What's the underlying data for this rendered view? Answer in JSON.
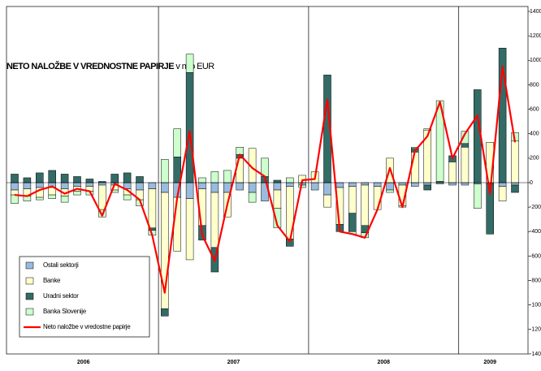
{
  "chart_data": {
    "type": "stacked_bar_line",
    "title": "NETO NALOŽBE V VREDNOSTNE PAPIRJE",
    "title_unit": "v mio EUR",
    "categories": [
      null,
      null,
      null,
      null,
      null,
      null,
      null,
      null,
      null,
      null,
      null,
      null,
      null,
      null,
      null,
      null,
      null,
      null,
      null,
      null,
      null,
      null,
      null,
      null,
      null,
      null,
      null,
      null,
      null,
      null,
      null,
      null,
      null,
      null,
      null,
      null,
      null,
      null,
      null,
      null,
      null
    ],
    "year_labels": [
      "2006",
      "2007",
      "2008",
      "2009"
    ],
    "series": [
      {
        "name": "Ostali sektorji",
        "color": "#99bbdd",
        "values": [
          -60,
          -50,
          -40,
          -40,
          -50,
          -30,
          -30,
          -20,
          -20,
          -50,
          -60,
          -50,
          -80,
          -120,
          -130,
          -50,
          -80,
          -80,
          -60,
          -80,
          -150,
          -60,
          -30,
          -20,
          -60,
          -100,
          -40,
          -30,
          -20,
          -30,
          -60,
          -20,
          -30,
          -20,
          -10,
          -20,
          -20,
          -10,
          -10,
          -30,
          -20
        ]
      },
      {
        "name": "Banke",
        "color": "#ffffcc",
        "values": [
          -40,
          -60,
          -80,
          -60,
          -60,
          -40,
          -40,
          -200,
          -40,
          -50,
          -80,
          -320,
          -950,
          -440,
          -500,
          -300,
          -450,
          -200,
          200,
          280,
          0,
          -150,
          -430,
          60,
          90,
          -100,
          -300,
          -220,
          -330,
          -190,
          200,
          -170,
          250,
          430,
          0,
          170,
          290,
          0,
          330,
          -120,
          340
        ]
      },
      {
        "name": "Uradni sektor",
        "color": "#336b66",
        "values": [
          70,
          40,
          80,
          100,
          70,
          50,
          30,
          10,
          70,
          80,
          50,
          -20,
          -60,
          210,
          900,
          -120,
          -200,
          0,
          30,
          0,
          50,
          20,
          -60,
          0,
          0,
          880,
          -60,
          -150,
          -60,
          0,
          0,
          0,
          30,
          -40,
          10,
          50,
          30,
          760,
          -410,
          1100,
          -60
        ]
      },
      {
        "name": "Banka Slovenije",
        "color": "#ccffcc",
        "values": [
          -70,
          -40,
          -20,
          -30,
          -50,
          -30,
          -30,
          -60,
          -20,
          -40,
          -50,
          -40,
          190,
          230,
          150,
          40,
          90,
          100,
          60,
          -80,
          150,
          -160,
          40,
          -20,
          0,
          0,
          0,
          -20,
          -40,
          0,
          -20,
          -10,
          10,
          10,
          660,
          0,
          100,
          -200,
          0,
          0,
          70
        ]
      },
      {
        "name": "Neto naložbe v vredostne papirje",
        "color": "#ff0000",
        "type": "line",
        "values": [
          -100,
          -110,
          -60,
          -30,
          -90,
          -50,
          -70,
          -270,
          -10,
          -60,
          -140,
          -430,
          -900,
          -120,
          420,
          -430,
          -640,
          -180,
          230,
          120,
          50,
          -350,
          -480,
          20,
          30,
          680,
          -400,
          -420,
          -450,
          -220,
          120,
          -200,
          260,
          380,
          660,
          200,
          400,
          550,
          -90,
          950,
          330
        ]
      }
    ],
    "ylim": [
      -1400,
      1400
    ],
    "yticks": [
      -1400,
      -1200,
      -1000,
      -800,
      -600,
      -400,
      -200,
      0,
      200,
      400,
      600,
      800,
      1000,
      1200,
      1400
    ],
    "legend": "lower-left"
  }
}
